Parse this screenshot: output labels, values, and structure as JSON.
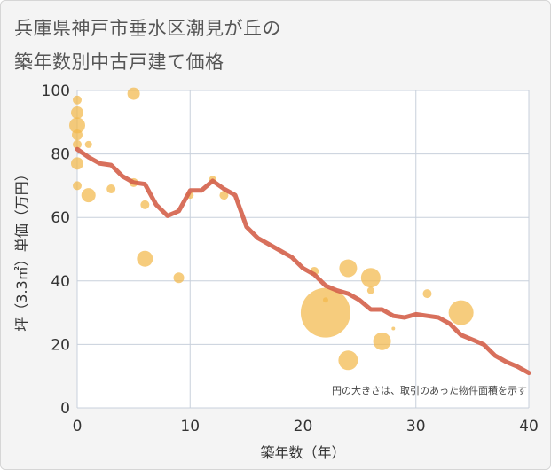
{
  "title_line1": "兵庫県神戸市垂水区潮見が丘の",
  "title_line2": "築年数別中古戸建て価格",
  "chart_data": {
    "type": "scatter",
    "xlabel": "築年数（年）",
    "ylabel": "坪（3.3㎡）単価（万円）",
    "xlim": [
      0,
      40
    ],
    "ylim": [
      0,
      100
    ],
    "x_ticks": [
      0,
      10,
      20,
      30,
      40
    ],
    "y_ticks": [
      0,
      20,
      40,
      60,
      80,
      100
    ],
    "grid": true,
    "note": "円の大きさは、取引のあった物件面積を示す",
    "colors": {
      "bubble": "#f2b84b",
      "line": "#d4604a",
      "plot_bg": "#ffffff",
      "grid": "#c8d0dc"
    },
    "points": [
      {
        "x": 0,
        "y": 97,
        "size": 5
      },
      {
        "x": 0,
        "y": 93,
        "size": 7
      },
      {
        "x": 0,
        "y": 89,
        "size": 9
      },
      {
        "x": 0,
        "y": 86,
        "size": 6
      },
      {
        "x": 0,
        "y": 83,
        "size": 5
      },
      {
        "x": 0,
        "y": 77,
        "size": 7
      },
      {
        "x": 0,
        "y": 70,
        "size": 5
      },
      {
        "x": 1,
        "y": 83,
        "size": 4
      },
      {
        "x": 1,
        "y": 67,
        "size": 8
      },
      {
        "x": 3,
        "y": 69,
        "size": 5
      },
      {
        "x": 5,
        "y": 99,
        "size": 7
      },
      {
        "x": 5,
        "y": 71,
        "size": 5
      },
      {
        "x": 6,
        "y": 64,
        "size": 5
      },
      {
        "x": 6,
        "y": 47,
        "size": 9
      },
      {
        "x": 9,
        "y": 41,
        "size": 6
      },
      {
        "x": 10,
        "y": 67,
        "size": 4
      },
      {
        "x": 12,
        "y": 72,
        "size": 4
      },
      {
        "x": 13,
        "y": 67,
        "size": 5
      },
      {
        "x": 21,
        "y": 43,
        "size": 5
      },
      {
        "x": 22,
        "y": 34,
        "size": 3
      },
      {
        "x": 22,
        "y": 30,
        "size": 28
      },
      {
        "x": 24,
        "y": 44,
        "size": 10
      },
      {
        "x": 24,
        "y": 15,
        "size": 11
      },
      {
        "x": 26,
        "y": 41,
        "size": 11
      },
      {
        "x": 26,
        "y": 37,
        "size": 4
      },
      {
        "x": 27,
        "y": 21,
        "size": 10
      },
      {
        "x": 28,
        "y": 25,
        "size": 2
      },
      {
        "x": 31,
        "y": 36,
        "size": 5
      },
      {
        "x": 34,
        "y": 30,
        "size": 14
      }
    ],
    "trend": {
      "x": [
        0,
        1,
        2,
        3,
        4,
        5,
        6,
        7,
        8,
        9,
        10,
        11,
        12,
        13,
        14,
        15,
        16,
        17,
        18,
        19,
        20,
        21,
        22,
        23,
        24,
        25,
        26,
        27,
        28,
        29,
        30,
        31,
        32,
        33,
        34,
        35,
        36,
        37,
        38,
        39,
        40
      ],
      "y": [
        81.5,
        79,
        77,
        76.5,
        73,
        71,
        70.5,
        64,
        60.5,
        62,
        68.5,
        68.5,
        71.5,
        69,
        67,
        57,
        53.5,
        51.5,
        49.5,
        47.5,
        44,
        42,
        38.5,
        37,
        36,
        34,
        31,
        31,
        29,
        28.5,
        29.5,
        29,
        28.5,
        26.5,
        23,
        21.5,
        20,
        16.5,
        14.5,
        13,
        11
      ]
    }
  }
}
